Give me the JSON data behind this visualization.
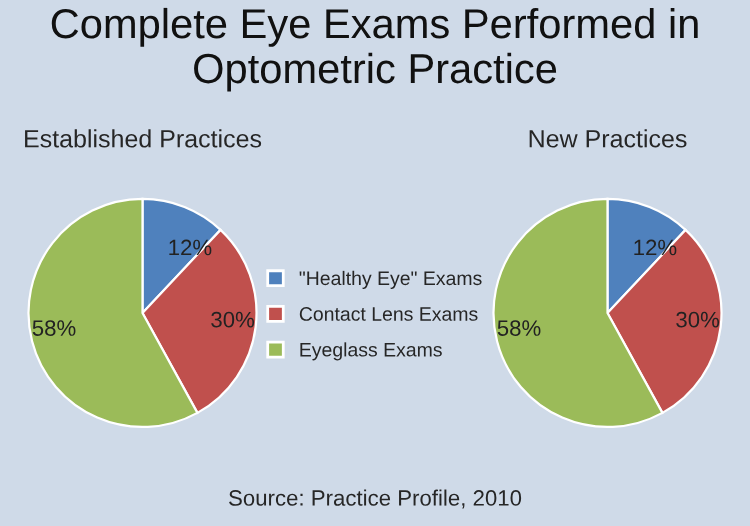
{
  "chart_data": [
    {
      "type": "pie",
      "title": "Complete Eye Exams Performed in Optometric Practice",
      "subtitle": "Established Practices",
      "categories": [
        "\"Healthy Eye\" Exams",
        "Contact Lens Exams",
        "Eyeglass Exams"
      ],
      "values": [
        12,
        30,
        58
      ],
      "value_labels": [
        "12%",
        "30%",
        "58%"
      ],
      "colors": [
        "#4f81bd",
        "#c0504d",
        "#9bbb59"
      ],
      "legend": "right"
    },
    {
      "type": "pie",
      "subtitle": "New Practices",
      "categories": [
        null,
        null,
        null
      ],
      "values": [
        12,
        30,
        58
      ],
      "value_labels": [
        "12%",
        "30%",
        "58%"
      ],
      "colors": [
        "#4f81bd",
        "#c0504d",
        "#9bbb59"
      ],
      "annotations": [
        "Source: Practice Profile, 2010"
      ]
    }
  ]
}
